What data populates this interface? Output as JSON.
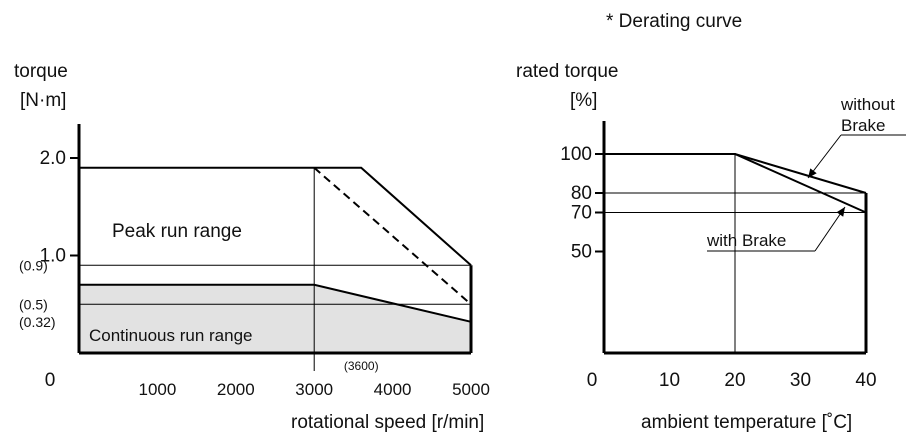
{
  "page_note": "* Derating curve",
  "chart_data": [
    {
      "type": "area",
      "xlabel": "rotational speed [r/min]",
      "ylabel": "torque",
      "yunit": "[N·m]",
      "xlim": [
        0,
        5000
      ],
      "ylim": [
        0,
        2.3
      ],
      "x_ticks": [
        {
          "v": 0,
          "label": "0"
        },
        {
          "v": 1000,
          "label": "1000"
        },
        {
          "v": 2000,
          "label": "2000"
        },
        {
          "v": 3000,
          "label": "3000"
        },
        {
          "v": 4000,
          "label": "4000"
        },
        {
          "v": 5000,
          "label": "5000"
        }
      ],
      "x_extra_ticks": [
        {
          "v": 3600,
          "label": "(3600)"
        }
      ],
      "y_ticks": [
        {
          "v": 2.0,
          "label": "2.0"
        },
        {
          "v": 1.0,
          "label": "1.0"
        }
      ],
      "y_extra_ticks": [
        {
          "v": 0.9,
          "label": "(0.9)"
        },
        {
          "v": 0.5,
          "label": "(0.5)"
        },
        {
          "v": 0.32,
          "label": "(0.32)"
        }
      ],
      "peak_curve": [
        [
          0,
          1.9
        ],
        [
          3600,
          1.9
        ],
        [
          5000,
          0.9
        ]
      ],
      "peak_dashed": [
        [
          3000,
          1.9
        ],
        [
          5000,
          0.5
        ]
      ],
      "continuous_curve": [
        [
          0,
          0.7
        ],
        [
          3000,
          0.7
        ],
        [
          5000,
          0.32
        ]
      ],
      "reference_h": [
        0.9,
        0.5
      ],
      "reference_v": [
        3000
      ],
      "annotations": {
        "peak": "Peak run range",
        "continuous": "Continuous run range"
      }
    },
    {
      "type": "line",
      "xlabel": "ambient temperature [˚C]",
      "ylabel": "rated torque",
      "yunit": "[%]",
      "xlim": [
        0,
        40
      ],
      "ylim": [
        0,
        120
      ],
      "x_ticks": [
        {
          "v": 0,
          "label": "0"
        },
        {
          "v": 10,
          "label": "10"
        },
        {
          "v": 20,
          "label": "20"
        },
        {
          "v": 30,
          "label": "30"
        },
        {
          "v": 40,
          "label": "40"
        }
      ],
      "y_ticks": [
        {
          "v": 100,
          "label": "100"
        },
        {
          "v": 80,
          "label": "80"
        },
        {
          "v": 70,
          "label": "70"
        },
        {
          "v": 50,
          "label": "50"
        }
      ],
      "series": [
        {
          "name": "without Brake",
          "x": [
            0,
            20,
            40
          ],
          "y": [
            100,
            100,
            80
          ]
        },
        {
          "name": "with Brake",
          "x": [
            0,
            20,
            40
          ],
          "y": [
            100,
            100,
            70
          ]
        }
      ],
      "reference_h": [
        80,
        70
      ],
      "reference_v": [
        20
      ],
      "labels": {
        "without_line1": "without",
        "without_line2": "Brake",
        "with": "with Brake"
      }
    }
  ]
}
